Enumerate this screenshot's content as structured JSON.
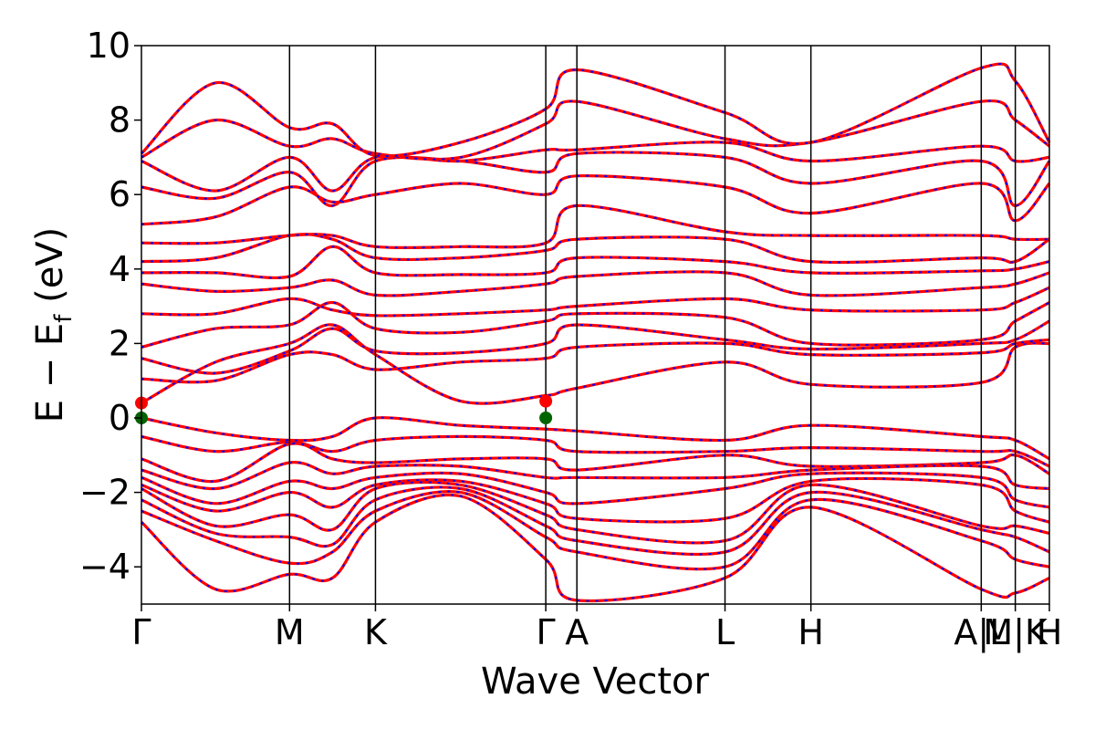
{
  "chart_data": {
    "type": "line",
    "title": "",
    "xlabel": "Wave Vector",
    "ylabel_parts": {
      "main": "E − E",
      "subscript": "f",
      "unit": " (eV)"
    },
    "ylim": [
      -5,
      10
    ],
    "xlim": [
      0,
      6.13
    ],
    "yticks": [
      -4,
      -2,
      0,
      2,
      4,
      6,
      8,
      10
    ],
    "ytick_labels": [
      "−4",
      "−2",
      "0",
      "2",
      "4",
      "6",
      "8",
      "10"
    ],
    "grid": false,
    "kpoints": [
      {
        "label": "Γ",
        "x": 0.0
      },
      {
        "label": "M",
        "x": 1.0
      },
      {
        "label": "K",
        "x": 1.58
      },
      {
        "label": "Γ",
        "x": 2.73
      },
      {
        "label": "A",
        "x": 2.94
      },
      {
        "label": "L",
        "x": 3.94
      },
      {
        "label": "H",
        "x": 4.52
      },
      {
        "label": "A|L",
        "x": 5.67
      },
      {
        "label": "M|K",
        "x": 5.9
      },
      {
        "label": "H",
        "x": 6.13
      }
    ],
    "segments": [
      {
        "from": 0.0,
        "to": 1.0
      },
      {
        "from": 1.0,
        "to": 1.58
      },
      {
        "from": 1.58,
        "to": 2.73
      },
      {
        "from": 2.73,
        "to": 2.94
      },
      {
        "from": 2.94,
        "to": 3.94
      },
      {
        "from": 3.94,
        "to": 4.52
      },
      {
        "from": 4.52,
        "to": 5.67
      },
      {
        "from": 5.67,
        "to": 5.9
      },
      {
        "from": 5.9,
        "to": 6.13
      }
    ],
    "conduction_bands": [
      [
        0.4,
        1.5,
        2.0,
        2.5,
        1.7,
        0.45,
        0.6,
        0.8,
        1.5,
        0.9,
        0.95,
        1.9,
        2.0
      ],
      [
        1.05,
        1.0,
        1.7,
        1.7,
        1.3,
        1.5,
        1.6,
        1.9,
        2.0,
        1.7,
        1.75,
        2.0,
        2.1
      ],
      [
        1.6,
        1.2,
        1.8,
        2.4,
        1.8,
        1.75,
        2.0,
        2.5,
        2.1,
        1.85,
        2.0,
        2.1,
        2.6
      ],
      [
        1.9,
        2.4,
        2.5,
        3.1,
        2.4,
        2.3,
        2.6,
        2.8,
        2.7,
        2.0,
        2.1,
        2.6,
        3.1
      ],
      [
        2.8,
        2.8,
        3.2,
        2.9,
        2.75,
        2.8,
        2.9,
        3.0,
        3.2,
        2.9,
        2.9,
        3.1,
        3.5
      ],
      [
        3.6,
        3.4,
        3.5,
        3.7,
        3.3,
        3.4,
        3.6,
        3.8,
        3.9,
        3.3,
        3.5,
        3.6,
        3.9
      ],
      [
        3.9,
        3.9,
        3.8,
        4.6,
        3.9,
        3.85,
        3.9,
        4.3,
        4.2,
        3.9,
        3.95,
        4.0,
        4.2
      ],
      [
        4.2,
        4.3,
        4.9,
        4.8,
        4.3,
        4.3,
        4.5,
        4.8,
        4.8,
        4.2,
        4.3,
        4.2,
        4.8
      ],
      [
        4.7,
        4.7,
        4.9,
        4.9,
        4.6,
        4.6,
        4.7,
        5.7,
        5.0,
        4.9,
        4.9,
        4.8,
        4.8
      ],
      [
        5.2,
        5.4,
        6.2,
        5.8,
        6.0,
        6.3,
        6.0,
        6.5,
        6.2,
        5.5,
        6.3,
        5.3,
        6.3
      ],
      [
        6.2,
        5.9,
        6.6,
        5.7,
        6.9,
        6.9,
        6.6,
        7.1,
        7.0,
        6.3,
        6.9,
        5.7,
        6.9
      ],
      [
        6.9,
        6.1,
        7.0,
        6.1,
        7.0,
        6.9,
        7.2,
        7.2,
        7.4,
        6.9,
        7.3,
        6.9,
        7.0
      ],
      [
        7.0,
        8.0,
        7.3,
        7.5,
        7.1,
        7.0,
        7.9,
        8.5,
        7.5,
        7.4,
        8.5,
        8.0,
        7.3
      ],
      [
        7.1,
        9.0,
        7.8,
        7.9,
        7.05,
        7.4,
        8.3,
        9.35,
        8.2,
        7.4,
        9.4,
        9.05,
        7.4
      ]
    ],
    "valence_bands": [
      [
        0.0,
        -0.4,
        -0.6,
        -0.5,
        0.0,
        -0.2,
        -0.3,
        -0.35,
        -0.6,
        -0.2,
        -0.5,
        -0.6,
        -1.1
      ],
      [
        -0.5,
        -0.9,
        -0.65,
        -0.9,
        -0.6,
        -0.5,
        -0.6,
        -0.9,
        -0.9,
        -0.8,
        -0.9,
        -0.9,
        -1.3
      ],
      [
        -1.1,
        -1.7,
        -0.7,
        -1.1,
        -1.2,
        -1.1,
        -1.1,
        -1.4,
        -1.0,
        -1.3,
        -1.2,
        -1.0,
        -1.5
      ],
      [
        -1.4,
        -1.9,
        -1.2,
        -1.5,
        -1.3,
        -1.3,
        -1.6,
        -1.6,
        -1.6,
        -1.4,
        -1.3,
        -1.8,
        -1.9
      ],
      [
        -1.6,
        -2.3,
        -1.7,
        -1.9,
        -1.6,
        -1.5,
        -2.0,
        -2.3,
        -1.9,
        -1.5,
        -1.6,
        -2.2,
        -2.4
      ],
      [
        -1.8,
        -2.5,
        -2.0,
        -2.4,
        -1.8,
        -1.7,
        -2.3,
        -2.7,
        -2.7,
        -1.7,
        -1.8,
        -2.5,
        -2.8
      ],
      [
        -1.9,
        -2.9,
        -2.6,
        -3.0,
        -1.9,
        -1.8,
        -2.6,
        -3.0,
        -3.3,
        -1.8,
        -2.9,
        -2.9,
        -3.1
      ],
      [
        -2.2,
        -3.1,
        -3.2,
        -3.4,
        -2.2,
        -1.9,
        -2.9,
        -3.3,
        -3.6,
        -2.0,
        -3.0,
        -3.2,
        -3.6
      ],
      [
        -2.5,
        -3.3,
        -3.9,
        -3.6,
        -2.5,
        -2.0,
        -3.2,
        -3.6,
        -4.0,
        -2.2,
        -3.3,
        -3.8,
        -4.0
      ],
      [
        -2.8,
        -4.6,
        -4.2,
        -4.3,
        -2.8,
        -2.1,
        -3.8,
        -4.9,
        -4.3,
        -2.4,
        -4.6,
        -4.7,
        -4.3
      ]
    ],
    "extrema_points": [
      {
        "x": 0.0,
        "y": 0.0,
        "kind": "vbm"
      },
      {
        "x": 2.73,
        "y": 0.0,
        "kind": "vbm"
      },
      {
        "x": 0.0,
        "y": 0.4,
        "kind": "cbm"
      },
      {
        "x": 2.73,
        "y": 0.45,
        "kind": "cbm"
      }
    ],
    "colors": {
      "band_primary": "#ff0000",
      "band_secondary": "#0000ff",
      "vbm": "#006400",
      "cbm": "#ff0000",
      "kpoint_line": "#000000"
    }
  }
}
